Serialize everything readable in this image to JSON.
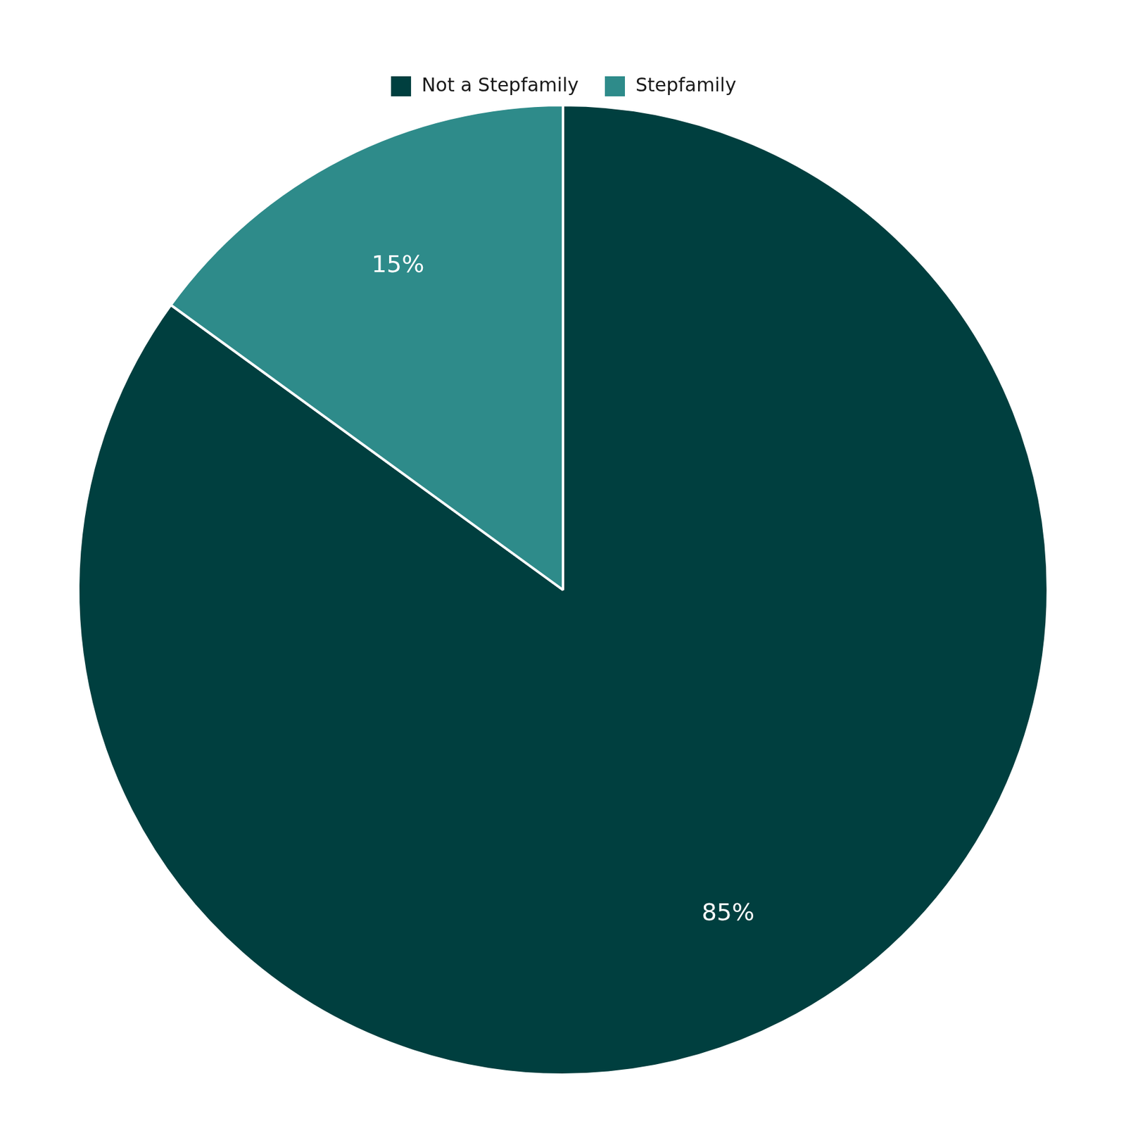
{
  "chart_data": {
    "type": "pie",
    "categories": [
      "Not a Stepfamily",
      "Stepfamily"
    ],
    "values": [
      85,
      15
    ],
    "value_labels": [
      "85%",
      "15%"
    ],
    "colors": [
      "#003f3f",
      "#2e8b8a"
    ],
    "data_labels": true,
    "legend": "top"
  }
}
